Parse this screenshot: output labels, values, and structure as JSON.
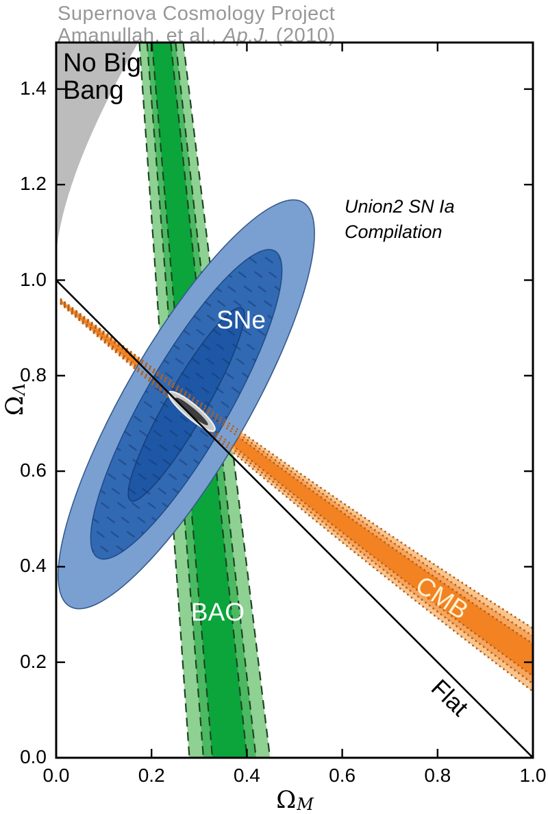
{
  "header": {
    "line1": "Supernova Cosmology Project",
    "line2_prefix": "Amanullah, et al., ",
    "line2_journal": "Ap.J.",
    "line2_suffix": " (2010)"
  },
  "chart_data": {
    "type": "contour",
    "title": "Supernova Cosmology Project — Union2 SN Ia constraints in the (Omega_M, Omega_Lambda) plane",
    "xlim": [
      0,
      1.0
    ],
    "ylim": [
      0,
      1.4975
    ],
    "x_axis": {
      "title_base": "Ω",
      "title_sub": "M",
      "tick_values": [
        0,
        0.2,
        0.4,
        0.6,
        0.8,
        1.0
      ],
      "tick_labels": [
        "0.0",
        "0.2",
        "0.4",
        "0.6",
        "0.8",
        "1.0"
      ]
    },
    "y_axis": {
      "title_base": "Ω",
      "title_sub": "Λ",
      "tick_values": [
        0,
        0.2,
        0.4,
        0.6,
        0.8,
        1.0,
        1.2,
        1.4
      ],
      "tick_labels": [
        "0.0",
        "0.2",
        "0.4",
        "0.6",
        "0.8",
        "1.0",
        "1.2",
        "1.4"
      ]
    },
    "regions": {
      "no_big_bang": {
        "name": "No Big Bang excluded region",
        "color": "#bcbcbc",
        "boundary": {
          "top_exit_x": 0.172,
          "control": [
            0.015,
            1.2225
          ],
          "left_exit_y": 1.055
        }
      },
      "bao": {
        "name": "BAO constraint band",
        "top_center": 0.2205,
        "bottom_center": 0.364,
        "levels": [
          {
            "hw_top": 0.046,
            "hw_bottom": 0.0845,
            "color": "#8ed193"
          },
          {
            "hw_top": 0.03,
            "hw_bottom": 0.0551,
            "color": "#4cb962"
          },
          {
            "hw_top": 0.0197,
            "hw_bottom": 0.0363,
            "color": "#0ba53c"
          }
        ],
        "edge_color": "#1c4522"
      },
      "sne": {
        "name": "SNe confidence ellipses",
        "center": [
          0.273,
          0.74
        ],
        "angle_deg": 60,
        "levels": [
          {
            "a": 0.489,
            "b": 0.129,
            "color": "#7aa0d2",
            "stroke": "#35598c"
          },
          {
            "a": 0.371,
            "b": 0.088,
            "color": "#3269b3",
            "stroke": "#1f4c8a"
          },
          {
            "a": 0.233,
            "b": 0.041,
            "color": "#1d57a6",
            "stroke": "#16417c"
          }
        ],
        "hatch_color": "#14356b"
      },
      "cmb": {
        "name": "CMB constraint band",
        "from": [
          0.01,
          0.955
        ],
        "control": [
          0.495,
          0.556
        ],
        "to": [
          1.0,
          0.205
        ],
        "levels": [
          {
            "hw0": 0.005,
            "hw1": 0.066,
            "color": "#fac48d"
          },
          {
            "hw0": 0.0033,
            "hw1": 0.05,
            "color": "#f7a45c"
          },
          {
            "hw0": 0.0017,
            "hw1": 0.034,
            "color": "#f28222"
          }
        ],
        "dot_color": "#b5601a"
      },
      "combined": {
        "name": "Combined best-fit contour",
        "center": [
          0.2845,
          0.7252
        ],
        "angle_deg": 40,
        "levels": [
          {
            "a": 0.062,
            "b": 0.0145,
            "color": "#c8c8c8",
            "stroke": "#ececec"
          },
          {
            "a": 0.044,
            "b": 0.0075,
            "color": "#3e3e3e"
          }
        ]
      },
      "flat_line": {
        "name": "Flat universe line",
        "from": [
          0,
          1.0
        ],
        "to": [
          1.0,
          0
        ],
        "color": "#000000"
      }
    },
    "annotations": [
      {
        "name": "no-big-bang-label",
        "lines": [
          "No Big",
          "Bang"
        ],
        "x": 0.0144,
        "y": 1.4832,
        "size": 38,
        "color": "#000000",
        "align": "left-top",
        "rot": 0,
        "italic": false
      },
      {
        "name": "union2-label",
        "lines": [
          "Union2 SN Ia",
          "Compilation"
        ],
        "x": 0.605,
        "y": 1.1807,
        "size": 27,
        "color": "#000000",
        "align": "left-top",
        "rot": 0,
        "italic": true
      },
      {
        "name": "sne-label",
        "lines": [
          "SNe"
        ],
        "x": 0.388,
        "y": 0.916,
        "size": 37,
        "color": "#ffffff",
        "align": "center",
        "rot": 0,
        "italic": false
      },
      {
        "name": "bao-label",
        "lines": [
          "BAO"
        ],
        "x": 0.339,
        "y": 0.304,
        "size": 37,
        "color": "#ffffff",
        "align": "center",
        "rot": 0,
        "italic": false
      },
      {
        "name": "cmb-label",
        "lines": [
          "CMB"
        ],
        "x": 0.809,
        "y": 0.3345,
        "size": 37,
        "color": "#fdf2d2",
        "align": "center",
        "rot": 33,
        "italic": false
      },
      {
        "name": "flat-label",
        "lines": [
          "Flat"
        ],
        "x": 0.825,
        "y": 0.125,
        "size": 35,
        "color": "#000000",
        "align": "center",
        "rot": 44,
        "italic": false
      }
    ]
  }
}
